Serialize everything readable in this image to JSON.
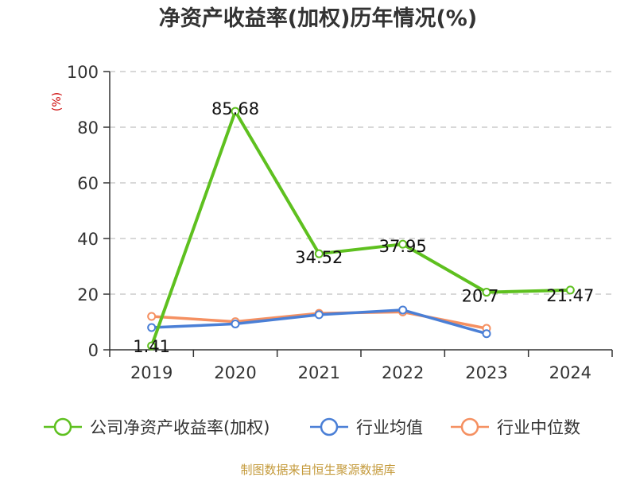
{
  "chart_data": {
    "type": "line",
    "title": "净资产收益率(加权)历年情况(%)",
    "ylabel": "(%)",
    "xlabel": "",
    "categories": [
      "2019",
      "2020",
      "2021",
      "2022",
      "2023",
      "2024"
    ],
    "ylim": [
      0,
      100
    ],
    "yticks": [
      0,
      20,
      40,
      60,
      80,
      100
    ],
    "grid": true,
    "legend_position": "bottom",
    "series": [
      {
        "name": "公司净资产收益率(加权)",
        "color": "#5ec01f",
        "values": [
          1.41,
          85.68,
          34.52,
          37.95,
          20.7,
          21.47
        ],
        "labels": [
          "1.41",
          "85.68",
          "34.52",
          "37.95",
          "20.7",
          "21.47"
        ]
      },
      {
        "name": "行业均值",
        "color": "#4a7fd6",
        "values": [
          8.0,
          9.3,
          12.6,
          14.3,
          5.8,
          null
        ]
      },
      {
        "name": "行业中位数",
        "color": "#f59061",
        "values": [
          12.0,
          10.1,
          13.1,
          13.6,
          7.7,
          null
        ]
      }
    ],
    "source": "制图数据来自恒生聚源数据库"
  }
}
